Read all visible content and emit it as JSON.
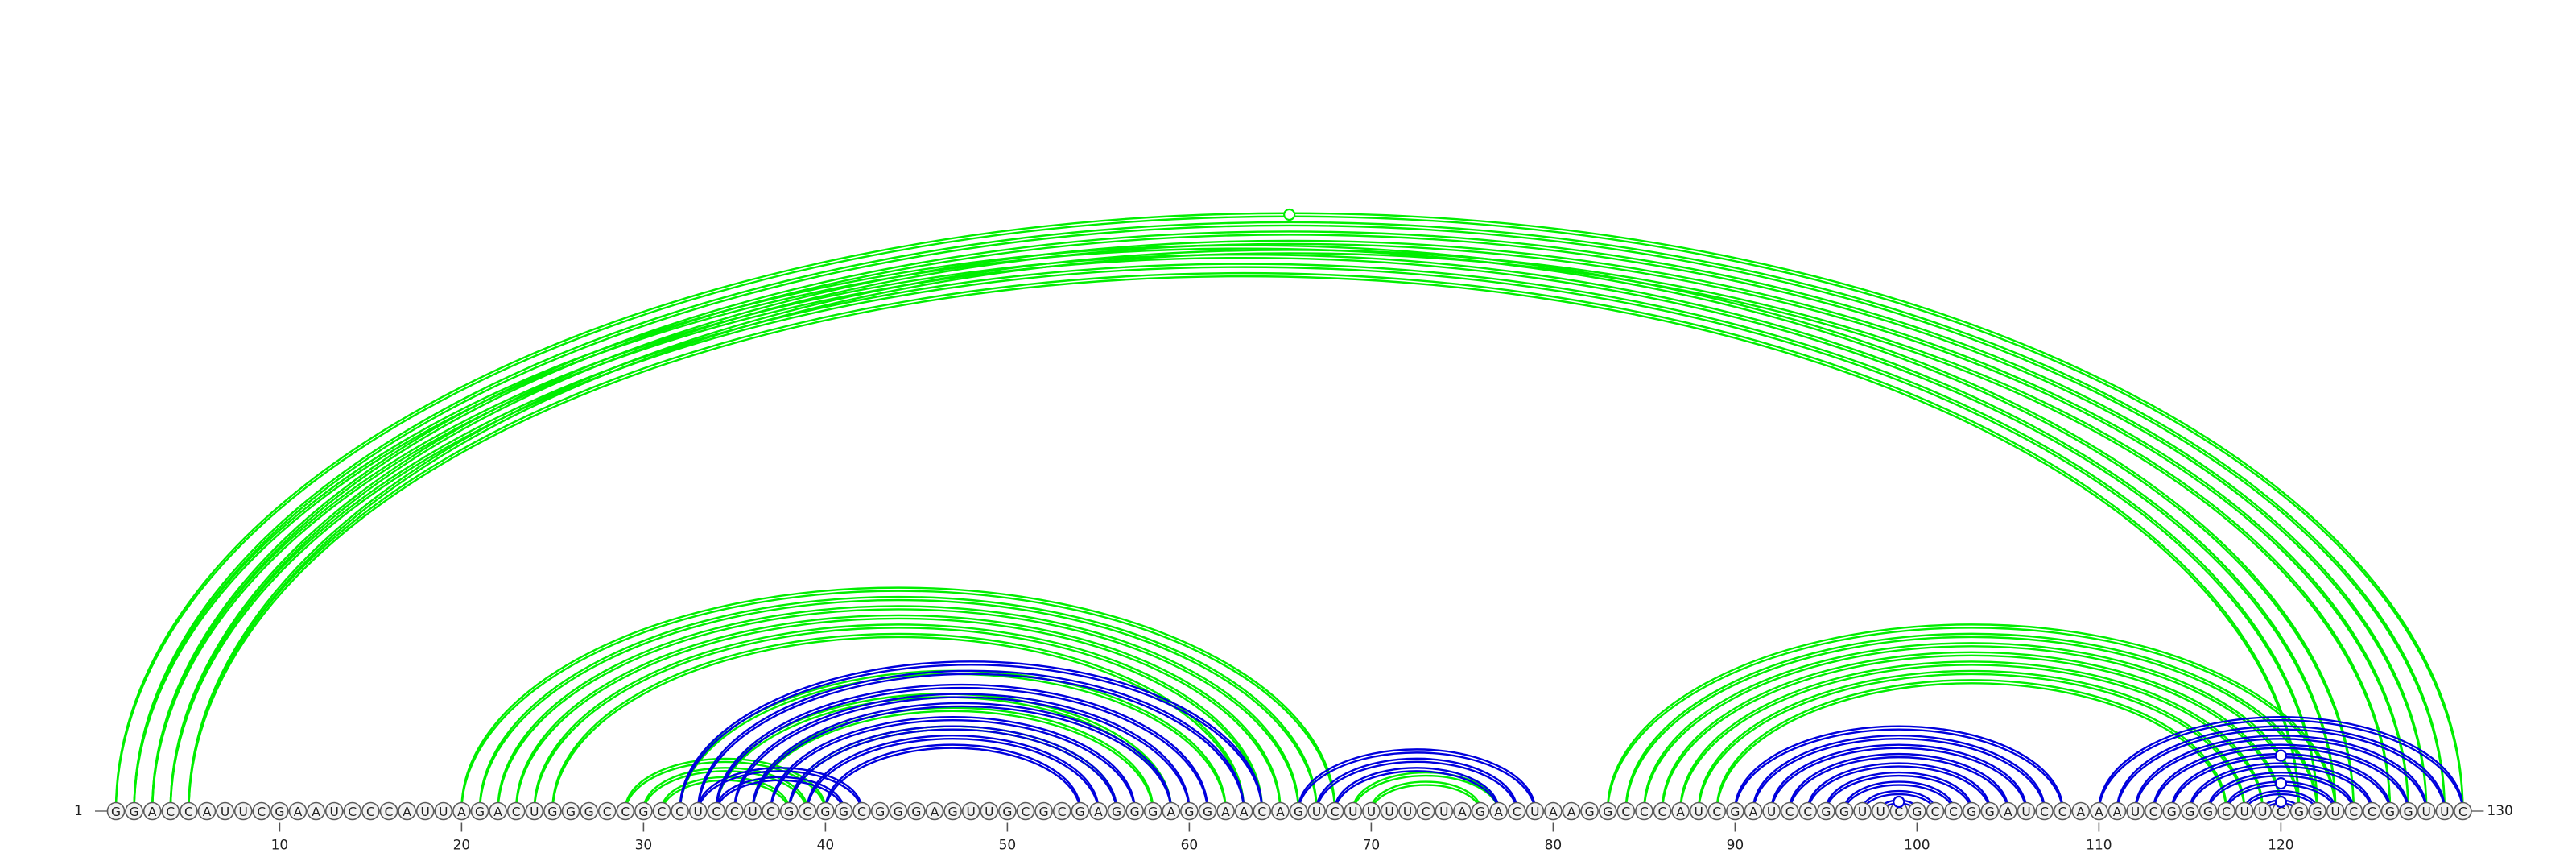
{
  "sequence": "GGACCAUUCGAAUCCCAUUAGACUGGGCCGCCUCCUCGCGGCGGGAGUUGCGCGAGGGAGGAACAGUCUUUUCUAGACUAAGGCCCAUCGAUCCGGUUCGCCGGAUCCAAAUCGGGCUUCGGUCCGGUUC",
  "start_label": "1",
  "end_label": "130",
  "tick_labels": [
    "10",
    "20",
    "30",
    "40",
    "50",
    "60",
    "70",
    "80",
    "90",
    "100",
    "110",
    "120"
  ],
  "colors": {
    "pair_set_a": "#00ee00",
    "pair_set_b": "#0000dd"
  },
  "arcs": [
    {
      "set": "a",
      "i": 1,
      "j": 130
    },
    {
      "set": "a",
      "i": 2,
      "j": 129
    },
    {
      "set": "a",
      "i": 3,
      "j": 128
    },
    {
      "set": "a",
      "i": 4,
      "j": 127
    },
    {
      "set": "a",
      "i": 5,
      "j": 126
    },
    {
      "set": "a",
      "i": 2,
      "j": 124
    },
    {
      "set": "a",
      "i": 3,
      "j": 123
    },
    {
      "set": "a",
      "i": 4,
      "j": 122
    },
    {
      "set": "a",
      "i": 5,
      "j": 121
    },
    {
      "set": "a",
      "i": 20,
      "j": 68
    },
    {
      "set": "a",
      "i": 21,
      "j": 67
    },
    {
      "set": "a",
      "i": 22,
      "j": 66
    },
    {
      "set": "a",
      "i": 23,
      "j": 65
    },
    {
      "set": "a",
      "i": 24,
      "j": 64
    },
    {
      "set": "a",
      "i": 25,
      "j": 63
    },
    {
      "set": "a",
      "i": 29,
      "j": 40
    },
    {
      "set": "a",
      "i": 30,
      "j": 39
    },
    {
      "set": "a",
      "i": 31,
      "j": 38
    },
    {
      "set": "a",
      "i": 32,
      "j": 62
    },
    {
      "set": "a",
      "i": 34,
      "j": 59
    },
    {
      "set": "a",
      "i": 36,
      "j": 58
    },
    {
      "set": "a",
      "i": 38,
      "j": 56
    },
    {
      "set": "a",
      "i": 69,
      "j": 77
    },
    {
      "set": "a",
      "i": 70,
      "j": 76
    },
    {
      "set": "a",
      "i": 83,
      "j": 123
    },
    {
      "set": "a",
      "i": 84,
      "j": 122
    },
    {
      "set": "a",
      "i": 85,
      "j": 121
    },
    {
      "set": "a",
      "i": 86,
      "j": 120
    },
    {
      "set": "a",
      "i": 87,
      "j": 119
    },
    {
      "set": "a",
      "i": 88,
      "j": 118
    },
    {
      "set": "a",
      "i": 89,
      "j": 117
    },
    {
      "set": "b",
      "i": 32,
      "j": 64
    },
    {
      "set": "b",
      "i": 33,
      "j": 63
    },
    {
      "set": "b",
      "i": 34,
      "j": 61
    },
    {
      "set": "b",
      "i": 35,
      "j": 60
    },
    {
      "set": "b",
      "i": 36,
      "j": 59
    },
    {
      "set": "b",
      "i": 37,
      "j": 57
    },
    {
      "set": "b",
      "i": 38,
      "j": 56
    },
    {
      "set": "b",
      "i": 39,
      "j": 55
    },
    {
      "set": "b",
      "i": 40,
      "j": 54
    },
    {
      "set": "b",
      "i": 33,
      "j": 42
    },
    {
      "set": "b",
      "i": 34,
      "j": 41
    },
    {
      "set": "b",
      "i": 66,
      "j": 79
    },
    {
      "set": "b",
      "i": 67,
      "j": 78
    },
    {
      "set": "b",
      "i": 68,
      "j": 77
    },
    {
      "set": "b",
      "i": 90,
      "j": 108
    },
    {
      "set": "b",
      "i": 91,
      "j": 107
    },
    {
      "set": "b",
      "i": 92,
      "j": 106
    },
    {
      "set": "b",
      "i": 93,
      "j": 105
    },
    {
      "set": "b",
      "i": 94,
      "j": 104
    },
    {
      "set": "b",
      "i": 95,
      "j": 103
    },
    {
      "set": "b",
      "i": 96,
      "j": 102
    },
    {
      "set": "b",
      "i": 97,
      "j": 101
    },
    {
      "set": "b",
      "i": 98,
      "j": 100
    },
    {
      "set": "b",
      "i": 110,
      "j": 130
    },
    {
      "set": "b",
      "i": 111,
      "j": 129
    },
    {
      "set": "b",
      "i": 112,
      "j": 128
    },
    {
      "set": "b",
      "i": 113,
      "j": 127
    },
    {
      "set": "b",
      "i": 114,
      "j": 126
    },
    {
      "set": "b",
      "i": 115,
      "j": 125
    },
    {
      "set": "b",
      "i": 116,
      "j": 124
    },
    {
      "set": "b",
      "i": 117,
      "j": 123
    },
    {
      "set": "b",
      "i": 118,
      "j": 122
    },
    {
      "set": "b",
      "i": 119,
      "j": 121
    }
  ],
  "arc_markers": [
    {
      "set": "a",
      "i": 1,
      "j": 130
    },
    {
      "set": "b",
      "i": 98,
      "j": 100
    },
    {
      "set": "b",
      "i": 119,
      "j": 121
    },
    {
      "set": "b",
      "i": 117,
      "j": 123
    },
    {
      "set": "b",
      "i": 114,
      "j": 126
    }
  ]
}
